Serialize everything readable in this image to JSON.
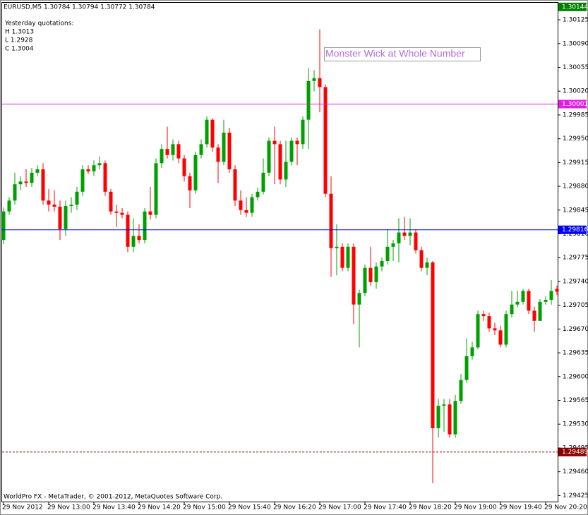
{
  "chart_data": {
    "type": "candlestick",
    "title": "EURUSD,M5  1.30784 1.30794 1.30772 1.30784",
    "info_lines": [
      "Yesterday quotations:",
      "H 1.3013",
      "L 1.2928",
      "C 1.3004"
    ],
    "annotation": "Monster Wick at Whole Number",
    "footer": "WorldPro FX - MetaTrader, © 2001-2012, MetaQuotes Software Corp.",
    "categories": [
      "29 Nov 2012",
      null,
      null,
      null,
      null,
      null,
      null,
      null,
      "29 Nov 13:00",
      null,
      null,
      null,
      null,
      null,
      null,
      null,
      "29 Nov 13:40",
      null,
      null,
      null,
      null,
      null,
      null,
      null,
      "29 Nov 14:20",
      null,
      null,
      null,
      null,
      null,
      null,
      null,
      "29 Nov 15:00",
      null,
      null,
      null,
      null,
      null,
      null,
      null,
      "29 Nov 15:40",
      null,
      null,
      null,
      null,
      null,
      null,
      null,
      "29 Nov 16:20",
      null,
      null,
      null,
      null,
      null,
      null,
      null,
      "29 Nov 17:00",
      null,
      null,
      null,
      null,
      null,
      null,
      null,
      "29 Nov 17:40",
      null,
      null,
      null,
      null,
      null,
      null,
      null,
      "29 Nov 18:20",
      null,
      null,
      null,
      null,
      null,
      null,
      null,
      "29 Nov 19:00",
      null,
      null,
      null,
      null,
      null,
      null,
      null,
      "29 Nov 19:40",
      null,
      null,
      null,
      null,
      null,
      null,
      null,
      "29 Nov 20:20",
      null,
      null
    ],
    "open": [
      1.29801,
      1.29843,
      1.29859,
      1.29883,
      1.29887,
      1.29885,
      1.299,
      1.29905,
      1.29859,
      1.29853,
      1.2985,
      1.29817,
      1.29851,
      1.29853,
      1.29872,
      1.29905,
      1.29902,
      1.29911,
      1.29914,
      1.29872,
      1.29843,
      1.29841,
      1.29838,
      1.29791,
      1.29807,
      1.29801,
      1.29843,
      1.29838,
      1.29914,
      1.29935,
      1.29926,
      1.29942,
      1.29921,
      1.29895,
      1.29874,
      1.29926,
      1.29942,
      1.29978,
      1.29937,
      1.29916,
      1.29959,
      1.29905,
      1.29859,
      1.29845,
      1.29841,
      1.29864,
      1.29872,
      1.299,
      1.29947,
      1.29942,
      1.2989,
      1.29916,
      1.29947,
      1.29942,
      1.29978,
      1.30035,
      1.30039,
      1.30026,
      1.29869,
      1.29789,
      1.29791,
      1.2976,
      1.29791,
      1.29706,
      1.29723,
      1.2976,
      1.29739,
      1.29762,
      1.2977,
      1.29791,
      1.29796,
      1.29812,
      1.29807,
      1.29812,
      1.29786,
      1.2976,
      1.29768,
      1.29524,
      1.29557,
      1.29559,
      1.29515,
      1.29564,
      1.29595,
      1.2963,
      1.29643,
      1.29692,
      1.29689,
      1.29671,
      1.29668,
      1.29647,
      1.29692,
      1.29706,
      1.2971,
      1.29726,
      1.29697,
      1.29682,
      1.2971,
      1.29713,
      1.29729
    ],
    "high": [
      1.29849,
      1.29864,
      1.299,
      1.29895,
      1.29905,
      1.29907,
      1.29911,
      1.29914,
      1.29876,
      1.29874,
      1.29859,
      1.29859,
      1.29864,
      1.29879,
      1.29911,
      1.29911,
      1.29918,
      1.29924,
      1.29918,
      1.29876,
      1.29853,
      1.29848,
      1.29843,
      1.29833,
      1.29824,
      1.29848,
      1.29879,
      1.29921,
      1.29942,
      1.29968,
      1.29949,
      1.29947,
      1.29926,
      1.299,
      1.29931,
      1.29949,
      1.29983,
      1.2998,
      1.29942,
      1.29978,
      1.29966,
      1.29911,
      1.29874,
      1.29864,
      1.29869,
      1.29878,
      1.29921,
      1.29952,
      1.29968,
      1.29947,
      1.29947,
      1.29952,
      1.29952,
      1.29983,
      1.30054,
      1.30051,
      1.30111,
      1.3003,
      1.29895,
      1.29824,
      1.29796,
      1.29796,
      1.29796,
      1.29728,
      1.29765,
      1.29791,
      1.29768,
      1.29775,
      1.29817,
      1.29801,
      1.29833,
      1.29835,
      1.29833,
      1.29817,
      1.29791,
      1.29775,
      1.2977,
      1.29567,
      1.29567,
      1.29567,
      1.29573,
      1.29604,
      1.29656,
      1.29651,
      1.29697,
      1.29697,
      1.29694,
      1.29679,
      1.29675,
      1.29697,
      1.29726,
      1.29726,
      1.29729,
      1.29729,
      1.29703,
      1.29714,
      1.29718,
      1.29742,
      1.29734
    ],
    "low": [
      1.29795,
      1.29838,
      1.29853,
      1.29874,
      1.29879,
      1.29879,
      1.29895,
      1.29853,
      1.29843,
      1.29843,
      1.29801,
      1.29807,
      1.29841,
      1.29845,
      1.29866,
      1.29898,
      1.29895,
      1.29905,
      1.29866,
      1.29838,
      1.2982,
      1.29833,
      1.29783,
      1.29783,
      1.29796,
      1.29796,
      1.29831,
      1.29833,
      1.29907,
      1.29921,
      1.29918,
      1.29914,
      1.29887,
      1.29848,
      1.29869,
      1.29921,
      1.29937,
      1.29931,
      1.29885,
      1.29911,
      1.299,
      1.29851,
      1.29838,
      1.29835,
      1.29835,
      1.29859,
      1.29868,
      1.29895,
      1.29883,
      1.29883,
      1.29879,
      1.29911,
      1.29911,
      1.29935,
      1.29935,
      1.3002,
      1.29989,
      1.29864,
      1.29747,
      1.29749,
      1.29755,
      1.29755,
      1.29677,
      1.29643,
      1.29718,
      1.29734,
      1.29729,
      1.29755,
      1.29765,
      1.2977,
      1.29768,
      1.29801,
      1.29793,
      1.29781,
      1.29755,
      1.29749,
      1.29443,
      1.2951,
      1.29519,
      1.2951,
      1.2951,
      1.2956,
      1.29591,
      1.29625,
      1.2964,
      1.29682,
      1.29666,
      1.29661,
      1.29643,
      1.29643,
      1.29687,
      1.29702,
      1.29706,
      1.29692,
      1.29666,
      1.29682,
      1.29706,
      1.29706,
      1.2972
    ],
    "close": [
      1.29843,
      1.29859,
      1.29883,
      1.29887,
      1.29885,
      1.299,
      1.29905,
      1.29859,
      1.29853,
      1.2985,
      1.29817,
      1.29851,
      1.29853,
      1.29872,
      1.29905,
      1.29902,
      1.29911,
      1.29914,
      1.29872,
      1.29843,
      1.29841,
      1.29838,
      1.29791,
      1.29807,
      1.29801,
      1.29843,
      1.29838,
      1.29914,
      1.29935,
      1.29926,
      1.29942,
      1.29921,
      1.29895,
      1.29874,
      1.29926,
      1.29942,
      1.29978,
      1.29937,
      1.29916,
      1.29959,
      1.29905,
      1.29859,
      1.29845,
      1.29841,
      1.29864,
      1.29872,
      1.299,
      1.29947,
      1.29942,
      1.2989,
      1.29916,
      1.29947,
      1.29942,
      1.29978,
      1.30035,
      1.30039,
      1.30026,
      1.29869,
      1.29789,
      1.29791,
      1.2976,
      1.29791,
      1.29706,
      1.29723,
      1.2976,
      1.29739,
      1.29762,
      1.2977,
      1.29791,
      1.29796,
      1.29812,
      1.29807,
      1.29812,
      1.29786,
      1.2976,
      1.29768,
      1.29524,
      1.29557,
      1.29559,
      1.29515,
      1.29564,
      1.29595,
      1.2963,
      1.29643,
      1.29692,
      1.29689,
      1.29671,
      1.29668,
      1.29647,
      1.29692,
      1.29706,
      1.2971,
      1.29726,
      1.29697,
      1.29682,
      1.2971,
      1.29713,
      1.29726,
      1.29725
    ],
    "up_color": "#00a000",
    "down_color": "#ff0000",
    "ylim": [
      1.29415,
      1.3015
    ],
    "yticks": [
      1.30125,
      {
        "value": 1.3009,
        "label": "1.30090"
      },
      1.30055,
      {
        "value": 1.3002,
        "label": "1.30020"
      },
      1.29985,
      {
        "value": 1.2995,
        "label": "1.29950"
      },
      1.29915,
      {
        "value": 1.2988,
        "label": "1.29880"
      },
      1.29845,
      {
        "value": 1.2981,
        "label": "1.29810"
      },
      1.29775,
      {
        "value": 1.2974,
        "label": "1.29740"
      },
      1.29705,
      {
        "value": 1.2967,
        "label": "1.29670"
      },
      1.29635,
      {
        "value": 1.296,
        "label": "1.29600"
      },
      1.29565,
      {
        "value": 1.2953,
        "label": "1.29530"
      },
      1.29495,
      {
        "value": 1.2946,
        "label": "1.29460"
      },
      1.29425
    ],
    "grid": false,
    "levels": [
      {
        "value": 1.30144,
        "color": "#008000",
        "style": "none"
      },
      {
        "value": 1.30001,
        "color": "#e020e0",
        "style": "solid"
      },
      {
        "value": 1.29816,
        "color": "#0000ff",
        "style": "solid"
      },
      {
        "value": 1.29489,
        "color": "#8b0000",
        "style": "dashed"
      }
    ]
  }
}
